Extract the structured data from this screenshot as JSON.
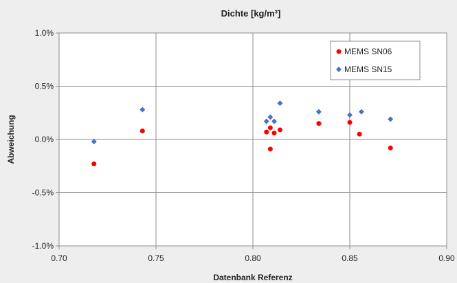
{
  "chart_data": {
    "type": "scatter",
    "title": "Dichte [kg/m³]",
    "xlabel": "Datenbank Referenz",
    "ylabel": "Abweichung",
    "xlim": [
      0.7,
      0.9
    ],
    "ylim": [
      -1.0,
      1.0
    ],
    "x_ticks": [
      "0.70",
      "0.75",
      "0.80",
      "0.85",
      "0.90"
    ],
    "x_tick_values": [
      0.7,
      0.75,
      0.8,
      0.85,
      0.9
    ],
    "y_ticks": [
      "1.0%",
      "0.5%",
      "0.0%",
      "-0.5%",
      "-1.0%"
    ],
    "y_tick_values": [
      1.0,
      0.5,
      0.0,
      -0.5,
      -1.0
    ],
    "grid": true,
    "legend_position": "top-right",
    "series": [
      {
        "name": "MEMS SN06",
        "marker": "circle",
        "color": "#ff0000",
        "points": [
          [
            0.718,
            -0.23
          ],
          [
            0.743,
            0.08
          ],
          [
            0.807,
            0.07
          ],
          [
            0.809,
            0.11
          ],
          [
            0.809,
            -0.09
          ],
          [
            0.811,
            0.06
          ],
          [
            0.814,
            0.09
          ],
          [
            0.834,
            0.15
          ],
          [
            0.85,
            0.16
          ],
          [
            0.855,
            0.05
          ],
          [
            0.871,
            -0.08
          ]
        ]
      },
      {
        "name": "MEMS SN15",
        "marker": "diamond",
        "color": "#4472c4",
        "points": [
          [
            0.718,
            -0.02
          ],
          [
            0.743,
            0.28
          ],
          [
            0.807,
            0.17
          ],
          [
            0.809,
            0.21
          ],
          [
            0.811,
            0.17
          ],
          [
            0.814,
            0.34
          ],
          [
            0.834,
            0.26
          ],
          [
            0.85,
            0.23
          ],
          [
            0.856,
            0.26
          ],
          [
            0.871,
            0.19
          ]
        ]
      }
    ]
  }
}
